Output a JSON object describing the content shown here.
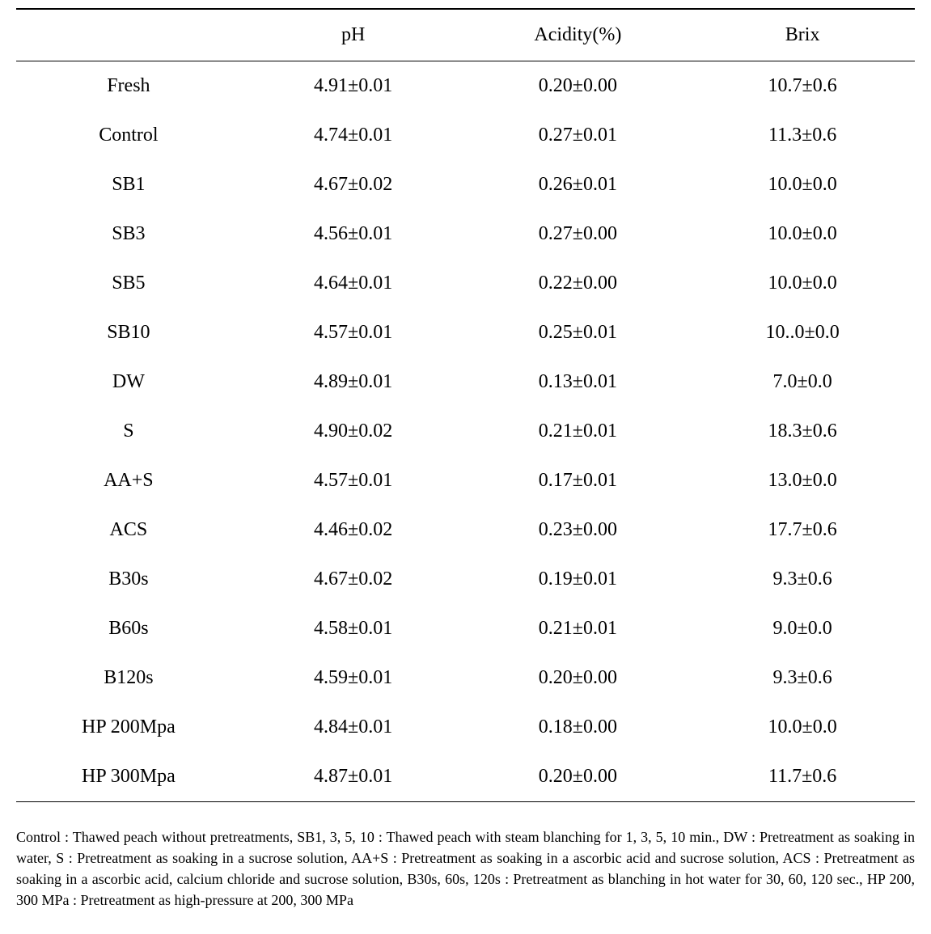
{
  "table": {
    "columns": [
      "",
      "pH",
      "Acidity(%)",
      "Brix"
    ],
    "rows": [
      [
        "Fresh",
        "4.91±0.01",
        "0.20±0.00",
        "10.7±0.6"
      ],
      [
        "Control",
        "4.74±0.01",
        "0.27±0.01",
        "11.3±0.6"
      ],
      [
        "SB1",
        "4.67±0.02",
        "0.26±0.01",
        "10.0±0.0"
      ],
      [
        "SB3",
        "4.56±0.01",
        "0.27±0.00",
        "10.0±0.0"
      ],
      [
        "SB5",
        "4.64±0.01",
        "0.22±0.00",
        "10.0±0.0"
      ],
      [
        "SB10",
        "4.57±0.01",
        "0.25±0.01",
        "10..0±0.0"
      ],
      [
        "DW",
        "4.89±0.01",
        "0.13±0.01",
        "7.0±0.0"
      ],
      [
        "S",
        "4.90±0.02",
        "0.21±0.01",
        "18.3±0.6"
      ],
      [
        "AA+S",
        "4.57±0.01",
        "0.17±0.01",
        "13.0±0.0"
      ],
      [
        "ACS",
        "4.46±0.02",
        "0.23±0.00",
        "17.7±0.6"
      ],
      [
        "B30s",
        "4.67±0.02",
        "0.19±0.01",
        "9.3±0.6"
      ],
      [
        "B60s",
        "4.58±0.01",
        "0.21±0.01",
        "9.0±0.0"
      ],
      [
        "B120s",
        "4.59±0.01",
        "0.20±0.00",
        "9.3±0.6"
      ],
      [
        "HP 200Mpa",
        "4.84±0.01",
        "0.18±0.00",
        "10.0±0.0"
      ],
      [
        "HP 300Mpa",
        "4.87±0.01",
        "0.20±0.00",
        "11.7±0.6"
      ]
    ]
  },
  "footnote": "Control : Thawed peach without pretreatments, SB1, 3, 5, 10 : Thawed peach with steam blanching for 1, 3, 5, 10 min., DW : Pretreatment as soaking in water, S : Pretreatment as soaking in a sucrose solution, AA+S : Pretreatment as soaking in a ascorbic acid and sucrose solution, ACS : Pretreatment as soaking in a ascorbic acid, calcium chloride and sucrose solution, B30s, 60s, 120s : Pretreatment as blanching in hot water for 30, 60, 120 sec., HP 200, 300 MPa : Pretreatment as high-pressure at 200, 300 MPa"
}
